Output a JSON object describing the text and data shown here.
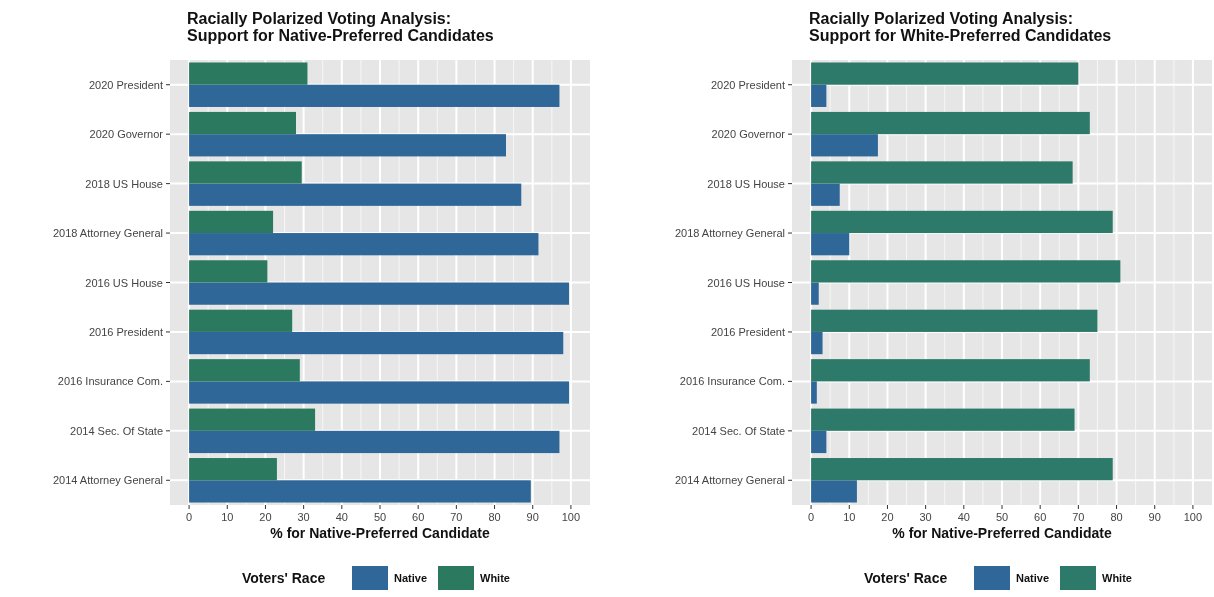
{
  "chart_data": [
    {
      "type": "bar",
      "orientation": "horizontal",
      "title": "Racially Polarized Voting Analysis:\nSupport for Native-Preferred Candidates",
      "xlabel": "% for Native-Preferred Candidate",
      "legend_title": "Voters' Race",
      "legend": "bottom",
      "grid": true,
      "categories": [
        "2020 President",
        "2020 Governor",
        "2018 US House",
        "2018 Attorney General",
        "2016 US House",
        "2016 President",
        "2016 Insurance Com.",
        "2014 Sec. Of State",
        "2014 Attorney General"
      ],
      "xlim": [
        -5,
        105
      ],
      "xticks": [
        0,
        10,
        20,
        30,
        40,
        50,
        60,
        70,
        80,
        90,
        100
      ],
      "series": [
        {
          "name": "Native",
          "color": "#2f6799",
          "values": [
            97,
            83,
            87,
            91.5,
            99.5,
            98,
            99.5,
            97,
            89.5
          ]
        },
        {
          "name": "White",
          "color": "#2b7a60",
          "values": [
            31,
            28,
            29.5,
            22,
            20.5,
            27,
            29,
            33,
            23
          ]
        }
      ]
    },
    {
      "type": "bar",
      "orientation": "horizontal",
      "title": "Racially Polarized Voting Analysis:\nSupport for White-Preferred Candidates",
      "xlabel": "% for Native-Preferred Candidate",
      "legend_title": "Voters' Race",
      "legend": "bottom",
      "grid": true,
      "categories": [
        "2020 President",
        "2020 Governor",
        "2018 US House",
        "2018 Attorney General",
        "2016 US House",
        "2016 President",
        "2016 Insurance Com.",
        "2014 Sec. Of State",
        "2014 Attorney General"
      ],
      "xlim": [
        -5,
        105
      ],
      "xticks": [
        0,
        10,
        20,
        30,
        40,
        50,
        60,
        70,
        80,
        90,
        100
      ],
      "series": [
        {
          "name": "Native",
          "color": "#2f6799",
          "values": [
            4,
            17.5,
            7.5,
            10,
            2,
            3,
            1.5,
            4,
            12
          ]
        },
        {
          "name": "White",
          "color": "#2e7a6a",
          "values": [
            70,
            73,
            68.5,
            79,
            81,
            75,
            73,
            69,
            79
          ]
        }
      ]
    }
  ]
}
